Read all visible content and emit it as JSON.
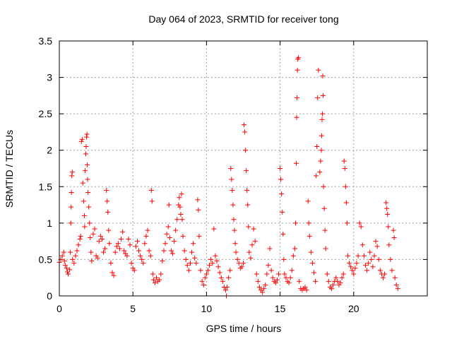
{
  "chart_data": {
    "type": "scatter",
    "title": "Day 064 of 2023, SRMTID for receiver tong",
    "xlabel": "GPS time / hours",
    "ylabel": "SRMTID / TECUs",
    "xlim": [
      0,
      25
    ],
    "ylim": [
      0,
      3.5
    ],
    "x_ticks": [
      0,
      5,
      10,
      15,
      20
    ],
    "x_tick_labels": [
      "0",
      "5",
      "10",
      "15",
      "20"
    ],
    "y_ticks": [
      0,
      0.5,
      1,
      1.5,
      2,
      2.5,
      3,
      3.5
    ],
    "y_tick_labels": [
      "0",
      "0.5",
      "1",
      "1.5",
      "2",
      "2.5",
      "3",
      "3.5"
    ],
    "grid": true,
    "marker": "+",
    "color": "#ff0000",
    "series": [
      {
        "name": "SRMTID",
        "points": [
          [
            0.0,
            0.46
          ],
          [
            0.1,
            0.5
          ],
          [
            0.2,
            0.55
          ],
          [
            0.3,
            0.6
          ],
          [
            0.35,
            0.48
          ],
          [
            0.4,
            0.42
          ],
          [
            0.5,
            0.38
          ],
          [
            0.55,
            0.33
          ],
          [
            0.6,
            0.3
          ],
          [
            0.7,
            0.36
          ],
          [
            0.75,
            0.6
          ],
          [
            0.78,
            1.0
          ],
          [
            0.8,
            1.22
          ],
          [
            0.82,
            1.42
          ],
          [
            0.85,
            1.65
          ],
          [
            0.88,
            1.7
          ],
          [
            0.9,
            0.5
          ],
          [
            1.0,
            0.45
          ],
          [
            1.1,
            0.55
          ],
          [
            1.2,
            0.62
          ],
          [
            1.3,
            0.7
          ],
          [
            1.4,
            0.78
          ],
          [
            1.45,
            0.82
          ],
          [
            1.5,
            2.12
          ],
          [
            1.55,
            2.15
          ],
          [
            1.6,
            1.55
          ],
          [
            1.65,
            1.3
          ],
          [
            1.7,
            1.1
          ],
          [
            1.72,
            0.95
          ],
          [
            1.75,
            1.72
          ],
          [
            1.8,
            1.95
          ],
          [
            1.82,
            2.05
          ],
          [
            1.85,
            2.18
          ],
          [
            1.88,
            2.22
          ],
          [
            1.9,
            1.8
          ],
          [
            1.92,
            1.6
          ],
          [
            1.95,
            1.42
          ],
          [
            2.0,
            1.22
          ],
          [
            2.05,
            1.0
          ],
          [
            2.1,
            0.8
          ],
          [
            2.15,
            0.6
          ],
          [
            2.2,
            0.48
          ],
          [
            2.3,
            0.85
          ],
          [
            2.4,
            0.92
          ],
          [
            2.5,
            0.55
          ],
          [
            2.6,
            0.52
          ],
          [
            2.7,
            0.75
          ],
          [
            2.8,
            0.82
          ],
          [
            2.9,
            0.78
          ],
          [
            3.0,
            0.6
          ],
          [
            3.1,
            0.65
          ],
          [
            3.2,
            1.45
          ],
          [
            3.25,
            1.3
          ],
          [
            3.3,
            1.15
          ],
          [
            3.35,
            0.9
          ],
          [
            3.4,
            0.72
          ],
          [
            3.5,
            0.45
          ],
          [
            3.6,
            0.32
          ],
          [
            3.7,
            0.28
          ],
          [
            3.8,
            0.6
          ],
          [
            3.9,
            0.68
          ],
          [
            4.0,
            0.72
          ],
          [
            4.1,
            0.65
          ],
          [
            4.2,
            0.78
          ],
          [
            4.3,
            0.88
          ],
          [
            4.4,
            0.62
          ],
          [
            4.5,
            0.58
          ],
          [
            4.6,
            0.55
          ],
          [
            4.7,
            0.78
          ],
          [
            4.8,
            0.7
          ],
          [
            4.9,
            0.45
          ],
          [
            5.0,
            0.38
          ],
          [
            5.1,
            0.35
          ],
          [
            5.2,
            0.68
          ],
          [
            5.3,
            0.75
          ],
          [
            5.4,
            0.62
          ],
          [
            5.5,
            0.55
          ],
          [
            5.6,
            0.5
          ],
          [
            5.7,
            0.45
          ],
          [
            5.8,
            0.72
          ],
          [
            5.9,
            0.82
          ],
          [
            6.0,
            0.9
          ],
          [
            6.1,
            0.62
          ],
          [
            6.2,
            0.55
          ],
          [
            6.25,
            1.45
          ],
          [
            6.3,
            1.3
          ],
          [
            6.35,
            0.3
          ],
          [
            6.4,
            0.22
          ],
          [
            6.5,
            0.18
          ],
          [
            6.6,
            0.25
          ],
          [
            6.7,
            0.2
          ],
          [
            6.8,
            0.22
          ],
          [
            6.9,
            0.3
          ],
          [
            7.0,
            0.48
          ],
          [
            7.1,
            0.62
          ],
          [
            7.2,
            0.72
          ],
          [
            7.3,
            0.85
          ],
          [
            7.4,
            0.95
          ],
          [
            7.45,
            1.25
          ],
          [
            7.5,
            0.8
          ],
          [
            7.6,
            0.62
          ],
          [
            7.7,
            0.58
          ],
          [
            7.8,
            0.75
          ],
          [
            7.9,
            0.9
          ],
          [
            8.0,
            1.05
          ],
          [
            8.1,
            1.25
          ],
          [
            8.15,
            1.35
          ],
          [
            8.2,
            1.22
          ],
          [
            8.25,
            1.12
          ],
          [
            8.3,
            1.4
          ],
          [
            8.35,
            1.05
          ],
          [
            8.4,
            0.82
          ],
          [
            8.5,
            0.62
          ],
          [
            8.6,
            0.5
          ],
          [
            8.7,
            0.42
          ],
          [
            8.8,
            0.35
          ],
          [
            8.9,
            0.45
          ],
          [
            9.0,
            0.6
          ],
          [
            9.1,
            0.72
          ],
          [
            9.2,
            0.52
          ],
          [
            9.3,
            0.45
          ],
          [
            9.4,
            1.32
          ],
          [
            9.45,
            1.18
          ],
          [
            9.5,
            0.82
          ],
          [
            9.6,
            0.35
          ],
          [
            9.7,
            0.2
          ],
          [
            9.8,
            0.15
          ],
          [
            9.9,
            0.25
          ],
          [
            10.0,
            0.3
          ],
          [
            10.1,
            0.35
          ],
          [
            10.2,
            0.42
          ],
          [
            10.3,
            0.5
          ],
          [
            10.4,
            0.45
          ],
          [
            10.5,
            0.92
          ],
          [
            10.6,
            0.55
          ],
          [
            10.7,
            0.48
          ],
          [
            10.8,
            0.4
          ],
          [
            10.9,
            0.32
          ],
          [
            11.0,
            0.25
          ],
          [
            11.1,
            0.2
          ],
          [
            11.2,
            0.12
          ],
          [
            11.3,
            0.08
          ],
          [
            11.35,
            0.0
          ],
          [
            11.4,
            0.12
          ],
          [
            11.5,
            0.25
          ],
          [
            11.6,
            0.35
          ],
          [
            11.65,
            1.75
          ],
          [
            11.7,
            1.6
          ],
          [
            11.75,
            1.45
          ],
          [
            11.8,
            1.25
          ],
          [
            11.85,
            1.05
          ],
          [
            11.9,
            0.9
          ],
          [
            11.95,
            0.72
          ],
          [
            12.0,
            0.6
          ],
          [
            12.1,
            0.5
          ],
          [
            12.2,
            0.45
          ],
          [
            12.3,
            0.38
          ],
          [
            12.4,
            0.4
          ],
          [
            12.5,
            0.45
          ],
          [
            12.55,
            2.35
          ],
          [
            12.6,
            2.25
          ],
          [
            12.65,
            2.0
          ],
          [
            12.7,
            1.72
          ],
          [
            12.75,
            1.45
          ],
          [
            12.8,
            1.25
          ],
          [
            12.85,
            0.95
          ],
          [
            12.9,
            0.6
          ],
          [
            13.0,
            0.52
          ],
          [
            13.1,
            0.7
          ],
          [
            13.2,
            0.92
          ],
          [
            13.3,
            0.75
          ],
          [
            13.4,
            0.3
          ],
          [
            13.5,
            0.2
          ],
          [
            13.6,
            0.12
          ],
          [
            13.7,
            0.08
          ],
          [
            13.8,
            0.05
          ],
          [
            13.9,
            0.1
          ],
          [
            14.0,
            0.15
          ],
          [
            14.1,
            0.3
          ],
          [
            14.2,
            0.42
          ],
          [
            14.3,
            0.65
          ],
          [
            14.4,
            0.35
          ],
          [
            14.5,
            0.25
          ],
          [
            14.6,
            0.2
          ],
          [
            14.7,
            0.18
          ],
          [
            14.8,
            0.22
          ],
          [
            14.9,
            0.3
          ],
          [
            15.0,
            1.75
          ],
          [
            15.05,
            1.6
          ],
          [
            15.1,
            1.4
          ],
          [
            15.15,
            1.15
          ],
          [
            15.2,
            0.85
          ],
          [
            15.25,
            0.5
          ],
          [
            15.3,
            0.3
          ],
          [
            15.4,
            0.25
          ],
          [
            15.5,
            0.2
          ],
          [
            15.6,
            0.18
          ],
          [
            15.7,
            0.25
          ],
          [
            15.8,
            0.35
          ],
          [
            15.9,
            0.55
          ],
          [
            16.0,
            0.65
          ],
          [
            16.05,
            1.0
          ],
          [
            16.1,
            1.82
          ],
          [
            16.12,
            2.45
          ],
          [
            16.15,
            2.72
          ],
          [
            16.18,
            3.1
          ],
          [
            16.2,
            3.25
          ],
          [
            16.25,
            3.27
          ],
          [
            16.3,
            0.2
          ],
          [
            16.4,
            0.1
          ],
          [
            16.5,
            0.08
          ],
          [
            16.6,
            0.1
          ],
          [
            16.7,
            0.12
          ],
          [
            16.8,
            0.08
          ],
          [
            16.9,
            1.3
          ],
          [
            16.95,
            1.0
          ],
          [
            17.0,
            0.82
          ],
          [
            17.1,
            0.6
          ],
          [
            17.2,
            0.45
          ],
          [
            17.3,
            0.32
          ],
          [
            17.4,
            0.2
          ],
          [
            17.45,
            1.65
          ],
          [
            17.5,
            2.05
          ],
          [
            17.55,
            2.72
          ],
          [
            17.6,
            3.1
          ],
          [
            17.7,
            1.7
          ],
          [
            17.75,
            1.85
          ],
          [
            17.8,
            2.0
          ],
          [
            17.82,
            2.2
          ],
          [
            17.85,
            2.42
          ],
          [
            17.88,
            2.5
          ],
          [
            17.9,
            3.02
          ],
          [
            17.92,
            2.75
          ],
          [
            17.95,
            1.5
          ],
          [
            18.0,
            1.2
          ],
          [
            18.05,
            0.9
          ],
          [
            18.1,
            0.65
          ],
          [
            18.2,
            0.3
          ],
          [
            18.3,
            0.2
          ],
          [
            18.4,
            0.12
          ],
          [
            18.5,
            0.1
          ],
          [
            18.6,
            0.15
          ],
          [
            18.7,
            0.2
          ],
          [
            18.8,
            0.25
          ],
          [
            18.9,
            0.2
          ],
          [
            19.0,
            0.15
          ],
          [
            19.1,
            0.18
          ],
          [
            19.2,
            0.25
          ],
          [
            19.3,
            0.3
          ],
          [
            19.35,
            1.85
          ],
          [
            19.4,
            1.75
          ],
          [
            19.45,
            1.5
          ],
          [
            19.5,
            1.28
          ],
          [
            19.55,
            1.0
          ],
          [
            19.6,
            0.55
          ],
          [
            19.7,
            0.45
          ],
          [
            19.8,
            0.4
          ],
          [
            19.9,
            0.35
          ],
          [
            20.0,
            0.3
          ],
          [
            20.1,
            0.38
          ],
          [
            20.2,
            0.45
          ],
          [
            20.3,
            0.55
          ],
          [
            20.4,
            1.0
          ],
          [
            20.5,
            0.95
          ],
          [
            20.6,
            0.7
          ],
          [
            20.7,
            0.55
          ],
          [
            20.8,
            0.42
          ],
          [
            20.9,
            0.35
          ],
          [
            21.0,
            0.45
          ],
          [
            21.1,
            0.6
          ],
          [
            21.2,
            0.5
          ],
          [
            21.3,
            0.4
          ],
          [
            21.4,
            0.55
          ],
          [
            21.5,
            0.75
          ],
          [
            21.6,
            0.68
          ],
          [
            21.7,
            0.5
          ],
          [
            21.8,
            0.35
          ],
          [
            21.9,
            0.3
          ],
          [
            22.0,
            0.25
          ],
          [
            22.1,
            0.3
          ],
          [
            22.2,
            1.28
          ],
          [
            22.25,
            1.2
          ],
          [
            22.3,
            1.12
          ],
          [
            22.35,
            0.95
          ],
          [
            22.4,
            0.7
          ],
          [
            22.5,
            0.5
          ],
          [
            22.6,
            0.35
          ],
          [
            22.7,
            0.9
          ],
          [
            22.75,
            0.8
          ],
          [
            22.8,
            0.25
          ],
          [
            22.9,
            0.15
          ],
          [
            23.0,
            0.1
          ]
        ]
      }
    ]
  }
}
